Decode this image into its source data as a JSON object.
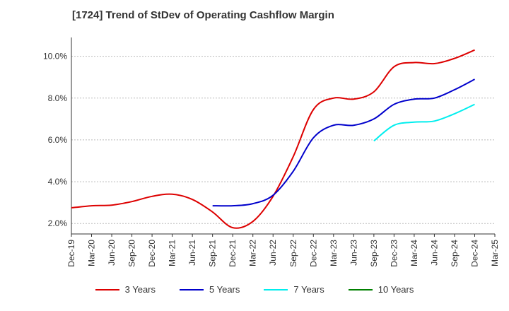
{
  "chart_data": {
    "type": "line",
    "title": "[1724]  Trend of StDev of Operating Cashflow Margin",
    "xlabel": "",
    "ylabel": "",
    "ylim": [
      1.5,
      10.9
    ],
    "yticks": [
      2.0,
      4.0,
      6.0,
      8.0,
      10.0
    ],
    "ytick_labels": [
      "2.0%",
      "4.0%",
      "6.0%",
      "8.0%",
      "10.0%"
    ],
    "x": [
      "Dec-19",
      "Mar-20",
      "Jun-20",
      "Sep-20",
      "Dec-20",
      "Mar-21",
      "Jun-21",
      "Sep-21",
      "Dec-21",
      "Mar-22",
      "Jun-22",
      "Sep-22",
      "Dec-22",
      "Mar-23",
      "Jun-23",
      "Sep-23",
      "Dec-23",
      "Mar-24",
      "Jun-24",
      "Sep-24",
      "Dec-24",
      "Mar-25"
    ],
    "grid": true,
    "legend_position": "bottom",
    "series": [
      {
        "name": "3 Years",
        "color": "#dd0000",
        "values": [
          2.75,
          2.85,
          2.88,
          3.05,
          3.3,
          3.4,
          3.15,
          2.55,
          1.8,
          2.1,
          3.3,
          5.2,
          7.45,
          8.0,
          7.95,
          8.3,
          9.5,
          9.7,
          9.65,
          9.9,
          10.3,
          null
        ]
      },
      {
        "name": "5 Years",
        "color": "#0000cc",
        "values": [
          null,
          null,
          null,
          null,
          null,
          null,
          null,
          2.85,
          2.85,
          2.95,
          3.35,
          4.5,
          6.1,
          6.7,
          6.7,
          7.0,
          7.7,
          7.95,
          8.0,
          8.4,
          8.9,
          null
        ]
      },
      {
        "name": "7 Years",
        "color": "#00eeee",
        "values": [
          null,
          null,
          null,
          null,
          null,
          null,
          null,
          null,
          null,
          null,
          null,
          null,
          null,
          null,
          null,
          5.95,
          6.7,
          6.85,
          6.9,
          7.25,
          7.7,
          null
        ]
      },
      {
        "name": "10 Years",
        "color": "#008000",
        "values": [
          null,
          null,
          null,
          null,
          null,
          null,
          null,
          null,
          null,
          null,
          null,
          null,
          null,
          null,
          null,
          null,
          null,
          null,
          null,
          null,
          null,
          null
        ]
      }
    ]
  }
}
